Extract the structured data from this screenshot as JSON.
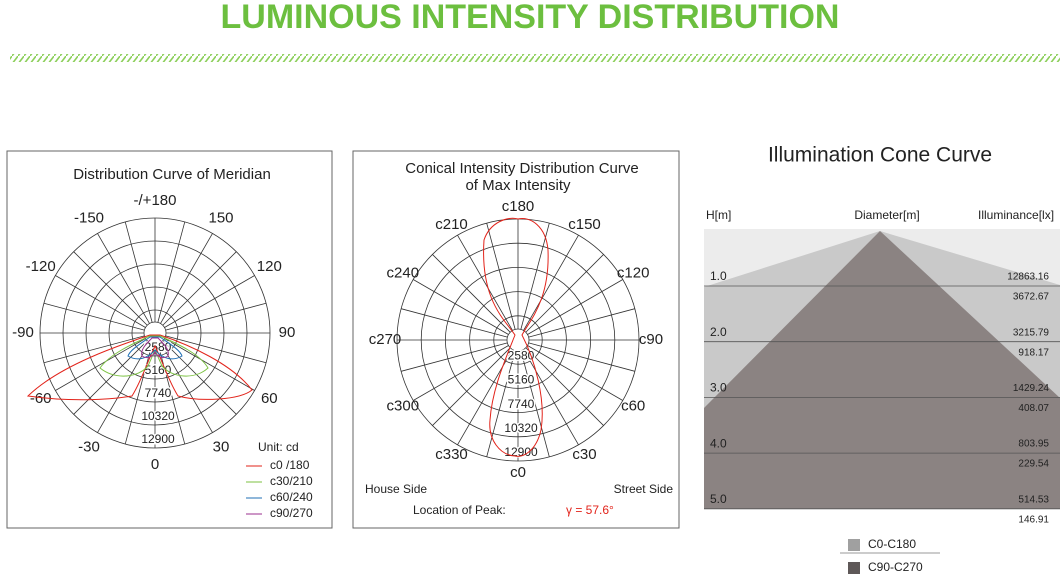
{
  "header": {
    "title": "LUMINOUS INTENSITY DISTRIBUTION"
  },
  "meridian": {
    "title": "Distribution Curve of  Meridian",
    "angle_labels": [
      "-/+180",
      "150",
      "120",
      "90",
      "60",
      "30",
      "0",
      "-30",
      "-60",
      "-90",
      "-120",
      "-150"
    ],
    "ring_labels": [
      2580,
      5160,
      7740,
      10320,
      12900
    ],
    "unit": "Unit: cd",
    "legend": [
      {
        "name": "c0 /180",
        "color": "#e2231a"
      },
      {
        "name": "c30/210",
        "color": "#7cc242"
      },
      {
        "name": "c60/240",
        "color": "#1f6fb5"
      },
      {
        "name": "c90/270",
        "color": "#9b2f8f"
      }
    ]
  },
  "conical": {
    "title": [
      "Conical Intensity Distribution Curve",
      "of  Max Intensity"
    ],
    "angle_labels": [
      "c180",
      "c150",
      "c120",
      "c90",
      "c60",
      "c30",
      "c0",
      "c330",
      "c300",
      "c270",
      "c240",
      "c210"
    ],
    "ring_labels": [
      2580,
      5160,
      7740,
      10320,
      12900
    ],
    "house_side": "House Side",
    "street_side": "Street Side",
    "peak_label": "Location of  Peak:",
    "peak_value": "γ = 57.6°"
  },
  "cone": {
    "title": "Illumination Cone Curve",
    "headers": [
      "H[m]",
      "Diameter[m]",
      "Illuminance[lx]"
    ],
    "rows": [
      {
        "h": "1.0",
        "values": [
          "12863.16",
          "3672.67"
        ]
      },
      {
        "h": "2.0",
        "values": [
          "3215.79",
          "918.17"
        ]
      },
      {
        "h": "3.0",
        "values": [
          "1429.24",
          "408.07"
        ]
      },
      {
        "h": "4.0",
        "values": [
          "803.95",
          "229.54"
        ]
      },
      {
        "h": "5.0",
        "values": [
          "514.53",
          "146.91"
        ]
      }
    ],
    "legend": [
      {
        "name": "C0-C180",
        "color": "#a0a0a0"
      },
      {
        "name": "C90-C270",
        "color": "#5e5858"
      }
    ]
  }
}
